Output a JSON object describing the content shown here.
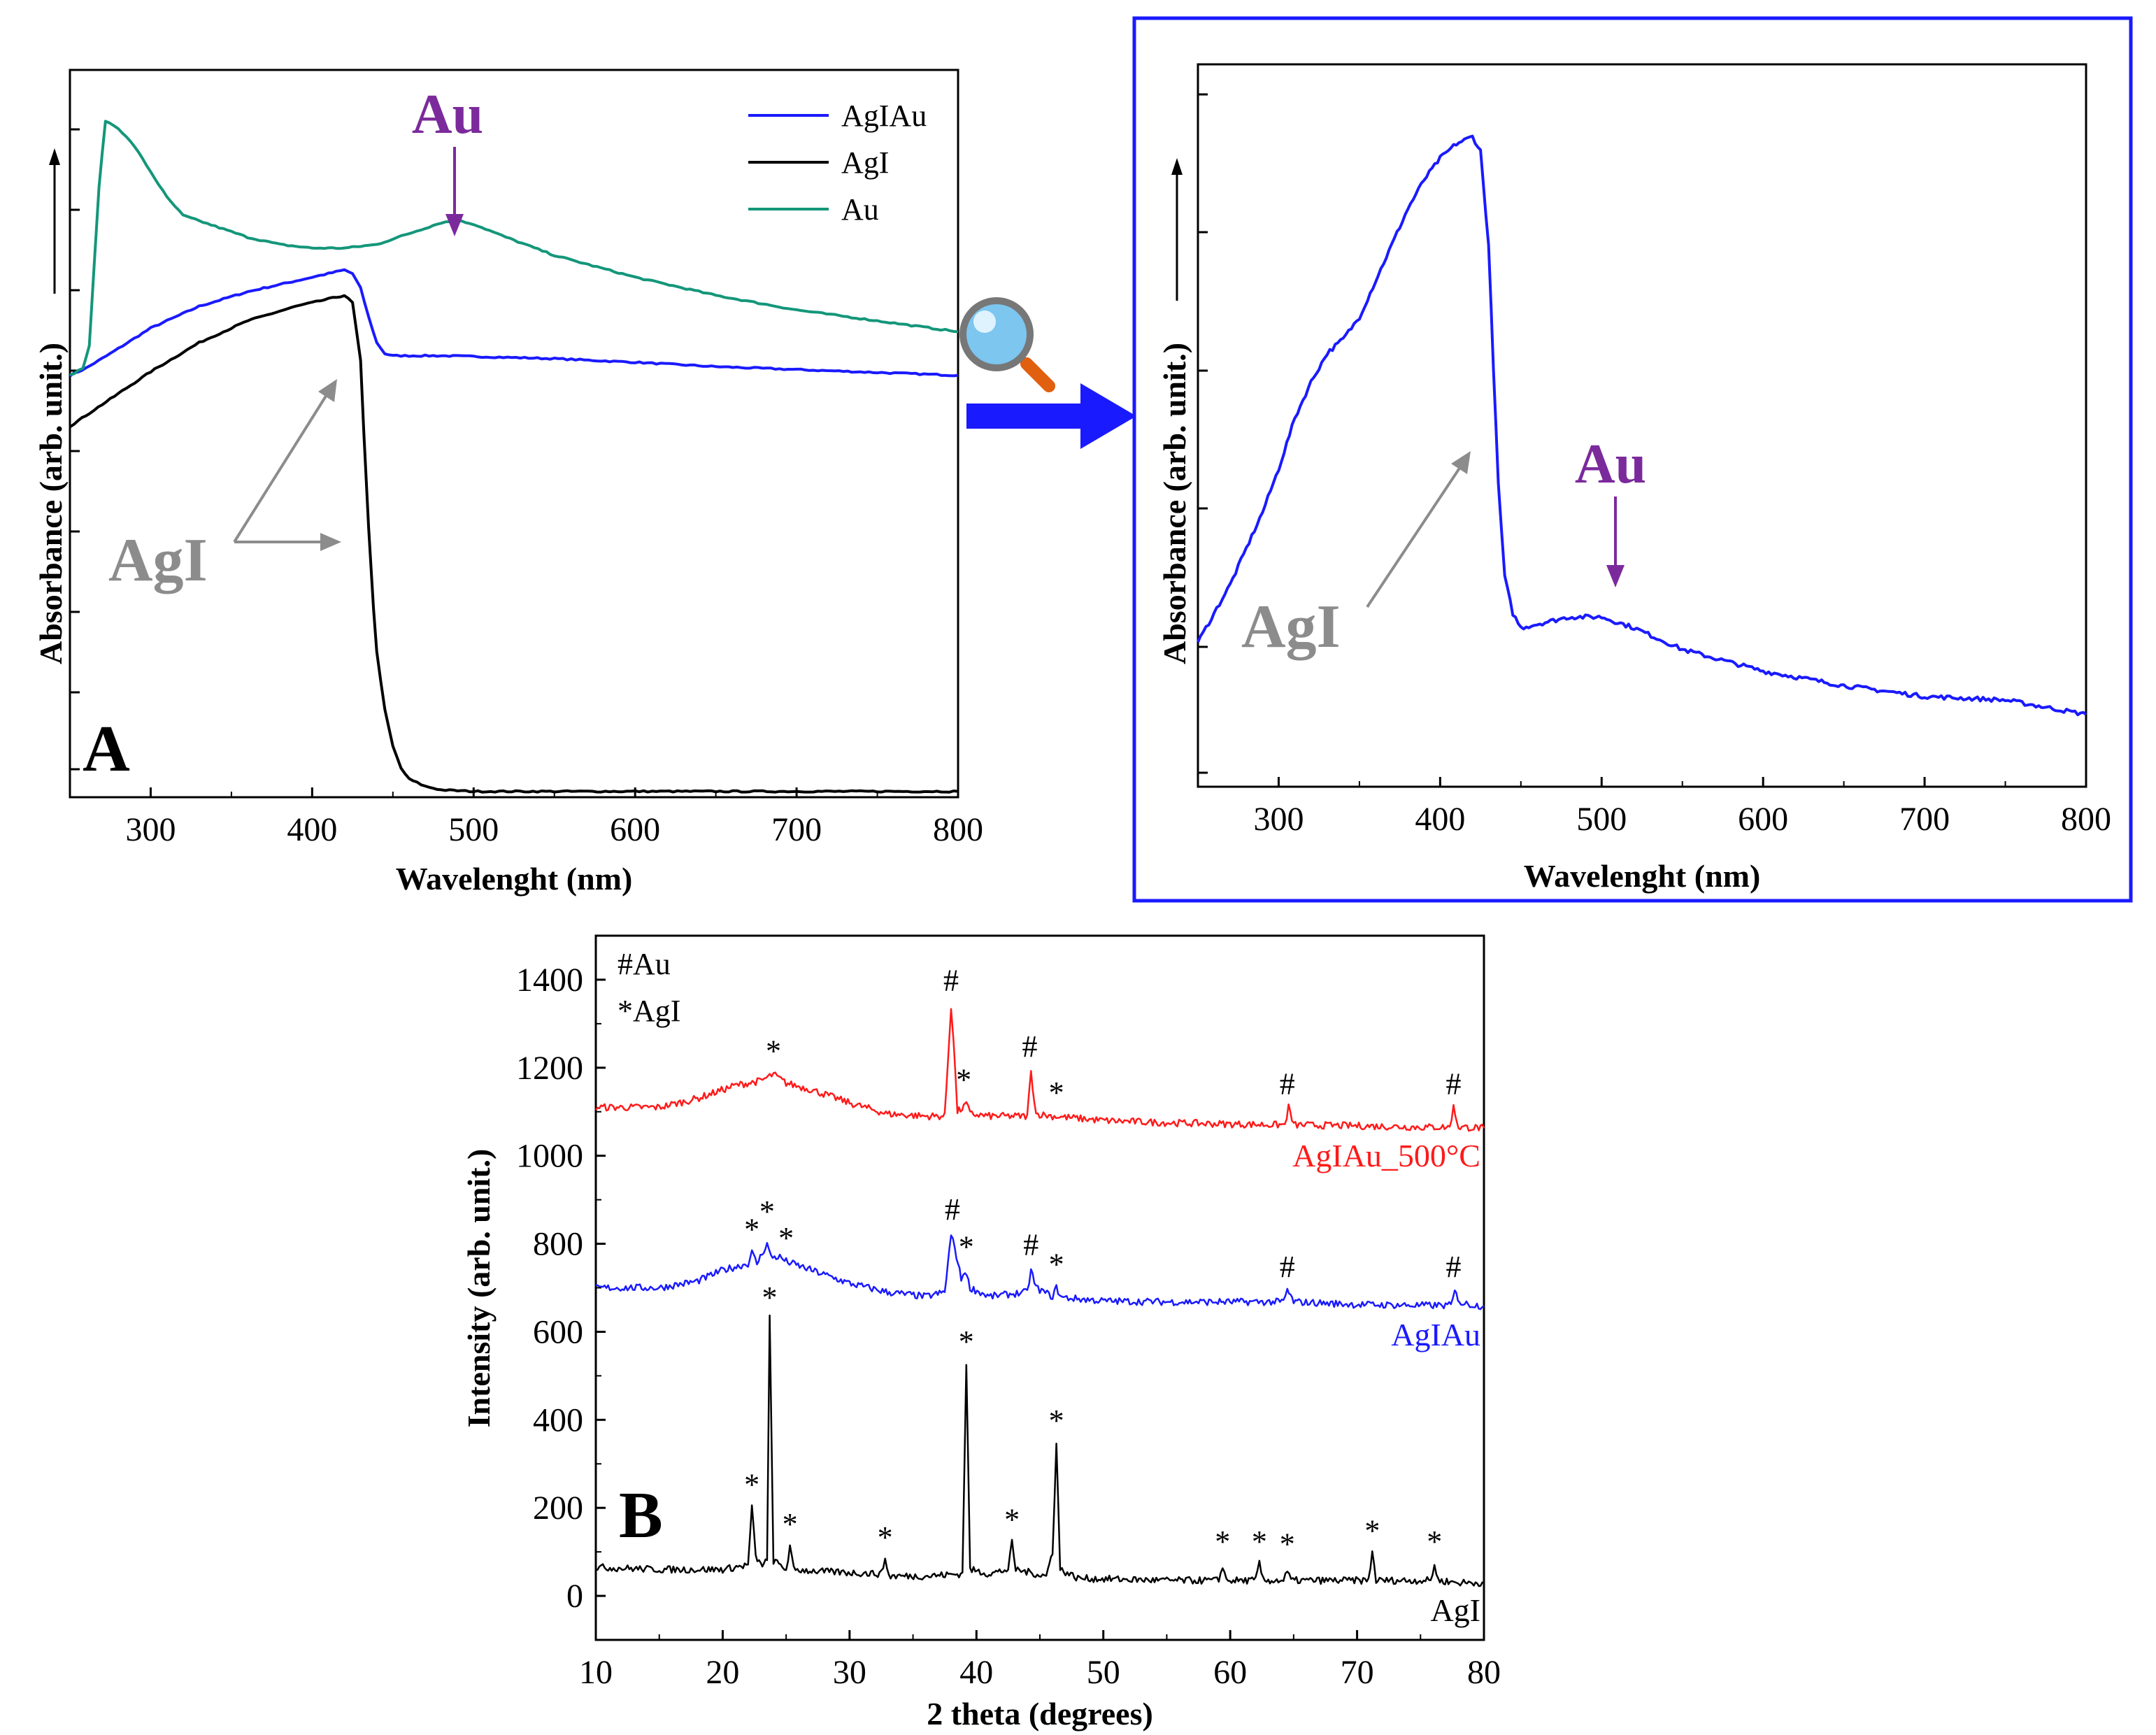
{
  "chart_data": [
    {
      "panel": "A",
      "type": "line",
      "title": "",
      "xlabel": "Wavelenght (nm)",
      "ylabel": "Absorbance (arb. unit.)",
      "xlim": [
        250,
        800
      ],
      "ylim": [
        0,
        1
      ],
      "xticks": [
        300,
        400,
        500,
        600,
        700,
        800
      ],
      "legend_position": "top-right",
      "series": [
        {
          "name": "AgIAu",
          "color": "#1a1aff",
          "x": [
            250,
            260,
            275,
            300,
            330,
            360,
            390,
            410,
            420,
            425,
            430,
            435,
            440,
            445,
            450,
            460,
            480,
            500,
            550,
            600,
            650,
            700,
            750,
            800
          ],
          "y": [
            0.58,
            0.59,
            0.61,
            0.645,
            0.675,
            0.695,
            0.71,
            0.72,
            0.725,
            0.72,
            0.7,
            0.66,
            0.625,
            0.61,
            0.607,
            0.607,
            0.607,
            0.606,
            0.603,
            0.598,
            0.592,
            0.588,
            0.584,
            0.58
          ]
        },
        {
          "name": "AgI",
          "color": "#000000",
          "x": [
            250,
            270,
            300,
            330,
            360,
            390,
            410,
            420,
            425,
            430,
            432,
            435,
            438,
            440,
            445,
            450,
            455,
            460,
            470,
            480,
            500,
            550,
            600,
            700,
            800
          ],
          "y": [
            0.51,
            0.54,
            0.585,
            0.625,
            0.655,
            0.675,
            0.685,
            0.69,
            0.68,
            0.6,
            0.5,
            0.37,
            0.26,
            0.2,
            0.12,
            0.07,
            0.04,
            0.025,
            0.015,
            0.01,
            0.008,
            0.008,
            0.008,
            0.008,
            0.008
          ]
        },
        {
          "name": "Au",
          "color": "#14967a",
          "x": [
            250,
            258,
            262,
            265,
            268,
            272,
            280,
            290,
            300,
            310,
            320,
            340,
            360,
            380,
            400,
            420,
            440,
            460,
            480,
            490,
            500,
            520,
            550,
            600,
            650,
            700,
            750,
            800
          ],
          "y": [
            0.58,
            0.59,
            0.62,
            0.73,
            0.84,
            0.93,
            0.92,
            0.895,
            0.86,
            0.825,
            0.8,
            0.785,
            0.77,
            0.76,
            0.755,
            0.755,
            0.76,
            0.775,
            0.79,
            0.793,
            0.788,
            0.77,
            0.745,
            0.715,
            0.69,
            0.67,
            0.655,
            0.64
          ]
        }
      ],
      "annotations": [
        {
          "text": "Au",
          "arrow_to_x": 490
        },
        {
          "text": "AgI",
          "arrow_to_x": 430
        }
      ]
    },
    {
      "panel": "A-zoom",
      "type": "line",
      "title": "",
      "xlabel": "Wavelenght (nm)",
      "ylabel": "Absorbance (arb. unit.)",
      "xlim": [
        250,
        800
      ],
      "ylim": [
        0,
        1
      ],
      "xticks": [
        300,
        400,
        500,
        600,
        700,
        800
      ],
      "series": [
        {
          "name": "AgIAu",
          "color": "#1a1aff",
          "x": [
            250,
            260,
            270,
            280,
            290,
            300,
            310,
            320,
            330,
            340,
            350,
            360,
            370,
            380,
            390,
            400,
            410,
            415,
            420,
            425,
            430,
            433,
            436,
            440,
            445,
            450,
            460,
            480,
            500,
            520,
            550,
            600,
            650,
            700,
            750,
            800
          ],
          "y": [
            0.2,
            0.24,
            0.28,
            0.33,
            0.38,
            0.44,
            0.51,
            0.56,
            0.6,
            0.62,
            0.65,
            0.7,
            0.75,
            0.8,
            0.84,
            0.87,
            0.89,
            0.895,
            0.9,
            0.88,
            0.75,
            0.58,
            0.42,
            0.29,
            0.24,
            0.22,
            0.225,
            0.235,
            0.235,
            0.22,
            0.19,
            0.16,
            0.14,
            0.125,
            0.12,
            0.1
          ]
        }
      ],
      "annotations": [
        {
          "text": "AgI",
          "arrow_to_x": 415
        },
        {
          "text": "Au",
          "arrow_to_x": 500
        }
      ]
    },
    {
      "panel": "B",
      "type": "line",
      "title": "",
      "xlabel": "2 theta (degrees)",
      "ylabel": "Intensity (arb. unit.)",
      "xlim": [
        10,
        80
      ],
      "ylim": [
        -100,
        1500
      ],
      "yticks": [
        0,
        200,
        400,
        600,
        800,
        1000,
        1200,
        1400
      ],
      "xticks": [
        10,
        20,
        30,
        40,
        50,
        60,
        70,
        80
      ],
      "legend_entries": [
        "#Au",
        "*AgI"
      ],
      "series": [
        {
          "name": "AgIAu_500°C",
          "color": "#ff1a1a",
          "x": [
            10,
            15,
            18,
            21,
            23,
            24,
            25,
            27,
            30,
            33,
            36,
            37.5,
            38.0,
            38.2,
            38.5,
            39.0,
            39.2,
            39.5,
            41,
            44.0,
            44.3,
            44.7,
            46,
            50,
            55,
            60,
            64.3,
            64.6,
            65,
            70,
            75,
            77.3,
            77.6,
            78,
            80
          ],
          "y": [
            1110,
            1110,
            1130,
            1160,
            1170,
            1185,
            1165,
            1150,
            1120,
            1095,
            1090,
            1090,
            1340,
            1260,
            1100,
            1110,
            1120,
            1095,
            1090,
            1090,
            1190,
            1095,
            1090,
            1080,
            1075,
            1072,
            1070,
            1110,
            1070,
            1068,
            1065,
            1065,
            1110,
            1065,
            1063
          ]
        },
        {
          "name": "AgIAu",
          "color": "#1a1aff",
          "x": [
            10,
            15,
            18,
            20,
            22,
            22.3,
            22.7,
            23.5,
            23.8,
            24.5,
            25,
            27,
            30,
            33,
            36,
            37.5,
            38.0,
            38.3,
            38.8,
            39.1,
            39.5,
            41,
            44.0,
            44.3,
            44.7,
            46,
            46.3,
            46.7,
            50,
            55,
            60,
            64.2,
            64.5,
            65,
            70,
            75,
            77.4,
            77.7,
            78.2,
            80
          ],
          "y": [
            700,
            700,
            715,
            740,
            755,
            780,
            755,
            800,
            770,
            770,
            760,
            740,
            710,
            690,
            680,
            690,
            820,
            790,
            720,
            740,
            700,
            680,
            690,
            740,
            700,
            680,
            700,
            678,
            670,
            668,
            668,
            668,
            695,
            668,
            662,
            660,
            660,
            690,
            665,
            658
          ]
        },
        {
          "name": "AgI",
          "color": "#000000",
          "x": [
            10,
            15,
            20,
            22.0,
            22.3,
            22.6,
            23.0,
            23.5,
            23.7,
            24.0,
            25.0,
            25.3,
            25.6,
            28,
            32.5,
            32.8,
            33.1,
            36,
            38.9,
            39.2,
            39.5,
            41,
            42.5,
            42.8,
            43.1,
            45.5,
            46.0,
            46.3,
            46.6,
            48,
            55,
            59.1,
            59.4,
            59.7,
            62.0,
            62.3,
            62.6,
            64.2,
            64.5,
            64.8,
            67,
            70.9,
            71.2,
            71.5,
            75.8,
            76.1,
            76.4,
            78,
            80
          ],
          "y": [
            65,
            60,
            60,
            70,
            200,
            90,
            70,
            80,
            630,
            80,
            60,
            110,
            60,
            55,
            50,
            85,
            45,
            45,
            50,
            530,
            60,
            50,
            60,
            120,
            60,
            45,
            100,
            350,
            60,
            40,
            35,
            35,
            70,
            35,
            35,
            75,
            35,
            35,
            55,
            35,
            35,
            35,
            100,
            35,
            35,
            70,
            35,
            30,
            30
          ]
        }
      ],
      "series_labels": [
        "AgIAu_500°C",
        "AgIAu",
        "AgI"
      ],
      "peak_markers": [
        {
          "series": "AgIAu_500°C",
          "symbol": "*",
          "x": 24.0,
          "y": 1215
        },
        {
          "series": "AgIAu_500°C",
          "symbol": "#",
          "x": 38.0,
          "y": 1375
        },
        {
          "series": "AgIAu_500°C",
          "symbol": "*",
          "x": 39.0,
          "y": 1150
        },
        {
          "series": "AgIAu_500°C",
          "symbol": "#",
          "x": 44.2,
          "y": 1225
        },
        {
          "series": "AgIAu_500°C",
          "symbol": "*",
          "x": 46.3,
          "y": 1120
        },
        {
          "series": "AgIAu_500°C",
          "symbol": "#",
          "x": 64.5,
          "y": 1140
        },
        {
          "series": "AgIAu_500°C",
          "symbol": "#",
          "x": 77.6,
          "y": 1140
        },
        {
          "series": "AgIAu",
          "symbol": "*",
          "x": 22.3,
          "y": 810
        },
        {
          "series": "AgIAu",
          "symbol": "*",
          "x": 23.5,
          "y": 850
        },
        {
          "series": "AgIAu",
          "symbol": "*",
          "x": 25.0,
          "y": 790
        },
        {
          "series": "AgIAu",
          "symbol": "#",
          "x": 38.1,
          "y": 855
        },
        {
          "series": "AgIAu",
          "symbol": "*",
          "x": 39.2,
          "y": 770
        },
        {
          "series": "AgIAu",
          "symbol": "#",
          "x": 44.3,
          "y": 775
        },
        {
          "series": "AgIAu",
          "symbol": "*",
          "x": 46.3,
          "y": 730
        },
        {
          "series": "AgIAu",
          "symbol": "#",
          "x": 64.5,
          "y": 725
        },
        {
          "series": "AgIAu",
          "symbol": "#",
          "x": 77.6,
          "y": 725
        },
        {
          "series": "AgI",
          "symbol": "*",
          "x": 22.3,
          "y": 230
        },
        {
          "series": "AgI",
          "symbol": "*",
          "x": 23.7,
          "y": 655
        },
        {
          "series": "AgI",
          "symbol": "*",
          "x": 25.3,
          "y": 140
        },
        {
          "series": "AgI",
          "symbol": "*",
          "x": 32.8,
          "y": 110
        },
        {
          "series": "AgI",
          "symbol": "*",
          "x": 39.2,
          "y": 555
        },
        {
          "series": "AgI",
          "symbol": "*",
          "x": 42.8,
          "y": 150
        },
        {
          "series": "AgI",
          "symbol": "*",
          "x": 46.3,
          "y": 375
        },
        {
          "series": "AgI",
          "symbol": "*",
          "x": 59.4,
          "y": 100
        },
        {
          "series": "AgI",
          "symbol": "*",
          "x": 62.3,
          "y": 100
        },
        {
          "series": "AgI",
          "symbol": "*",
          "x": 64.5,
          "y": 95
        },
        {
          "series": "AgI",
          "symbol": "*",
          "x": 71.2,
          "y": 125
        },
        {
          "series": "AgI",
          "symbol": "*",
          "x": 76.1,
          "y": 100
        }
      ]
    }
  ],
  "labels": {
    "panel_a": "A",
    "panel_b": "B",
    "au_annotation": "Au",
    "agi_annotation": "AgI",
    "legend_agiau": "AgIAu",
    "legend_agi": "AgI",
    "legend_au": "Au",
    "xrd_legend_au": "#Au",
    "xrd_legend_agi": "*AgI",
    "xrd_label_500": "AgIAu_500°C",
    "xrd_label_agiau": "AgIAu",
    "xrd_label_agi": "AgI"
  },
  "colors": {
    "agiau": "#1a1aff",
    "agi": "#000000",
    "au": "#14967a",
    "agiau_500": "#ff1a1a",
    "au_annotation": "#7b2a9c",
    "agi_annotation": "#8c8c8c",
    "zoom_frame": "#1a1aff"
  },
  "icons": {
    "zoom": "magnifier-icon",
    "transition": "arrow-right-icon"
  }
}
